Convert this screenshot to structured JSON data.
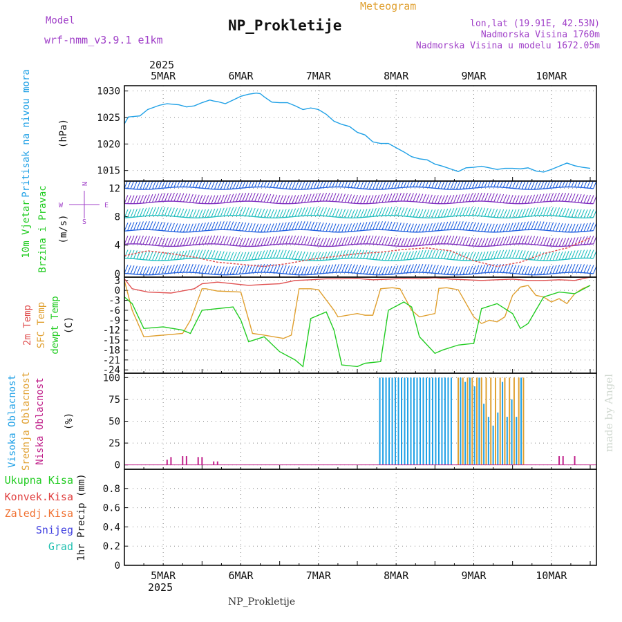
{
  "header": {
    "model_label": "Model",
    "model_name": "wrf-nmm_v3.9.1 e1km",
    "title": "NP_Prokletije",
    "meteogram_label": "Meteogram",
    "lonlat": "lon,lat (19.91E, 42.53N)",
    "elevation": "Nadmorska Visina 1760m",
    "model_elevation": "Nadmorska Visina u modelu 1672.05m",
    "footer_station": "NP_Prokletije",
    "watermark": "made by Angel"
  },
  "colors": {
    "pressure": "#1ea0e6",
    "t2m": "#e05050",
    "sfc": "#e0a030",
    "dewpt": "#22cc22",
    "high_cloud": "#1ea0e6",
    "mid_cloud": "#e0a030",
    "low_cloud": "#c0208a",
    "purple_text": "#a040c8",
    "grid": "#888888"
  },
  "chart_data": [
    {
      "id": "pressure",
      "type": "line",
      "ylabel_lines": [
        "Pritisak na nivou mora"
      ],
      "unit": "(hPa)",
      "ylim": [
        1013,
        1031
      ],
      "yticks": [
        1015,
        1020,
        1025,
        1030
      ],
      "x_days_start": 0,
      "series": [
        {
          "values_x": [
            0,
            0.05,
            0.2,
            0.3,
            0.45,
            0.55,
            0.7,
            0.8,
            0.9,
            1.0,
            1.1,
            1.15,
            1.2,
            1.3,
            1.4,
            1.5,
            1.6,
            1.7,
            1.75,
            1.8,
            1.9,
            2.0,
            2.1,
            2.2,
            2.3,
            2.4,
            2.5,
            2.6,
            2.7,
            2.8,
            2.9,
            3.0,
            3.1,
            3.2,
            3.3,
            3.4,
            3.5,
            3.6,
            3.7,
            3.8,
            3.9,
            4.0,
            4.1,
            4.2,
            4.3,
            4.4,
            4.5,
            4.6,
            4.7,
            4.8,
            4.9,
            5.0,
            5.1,
            5.2,
            5.3,
            5.4,
            5.5,
            5.6,
            5.7,
            5.8,
            5.9,
            6.0
          ],
          "values_y": [
            1023.8,
            1025.1,
            1025.3,
            1026.5,
            1027.3,
            1027.6,
            1027.4,
            1027.0,
            1027.2,
            1027.8,
            1028.3,
            1028.1,
            1028.0,
            1027.6,
            1028.3,
            1029.0,
            1029.4,
            1029.6,
            1029.5,
            1028.9,
            1027.9,
            1027.8,
            1027.8,
            1027.2,
            1026.5,
            1026.8,
            1026.5,
            1025.6,
            1024.3,
            1023.7,
            1023.3,
            1022.2,
            1021.7,
            1020.4,
            1020.1,
            1020.1,
            1019.3,
            1018.5,
            1017.6,
            1017.2,
            1017.0,
            1016.2,
            1015.8,
            1015.3,
            1014.8,
            1015.5,
            1015.6,
            1015.8,
            1015.5,
            1015.2,
            1015.4,
            1015.4,
            1015.3,
            1015.5,
            1014.9,
            1014.7,
            1015.2,
            1015.8,
            1016.4,
            1015.9,
            1015.6,
            1015.4
          ]
        }
      ]
    },
    {
      "id": "wind",
      "type": "line",
      "ylabel_lines": [
        "10m Vjetar",
        "Brzina i Pravac"
      ],
      "unit": "(m/s)",
      "ylim": [
        -0.5,
        13
      ],
      "yticks": [
        0,
        4,
        8,
        12
      ],
      "compass": [
        "N",
        "E",
        "S",
        "W"
      ],
      "series": [
        {
          "name": "",
          "level": 12,
          "color": "#2060e0"
        },
        {
          "name": "",
          "level": 10,
          "color": "#8030c0"
        },
        {
          "name": "",
          "level": 8,
          "color": "#20c0c0"
        },
        {
          "name": "",
          "level": 6,
          "color": "#2060e0"
        },
        {
          "name": "",
          "level": 4,
          "color": "#8030c0"
        },
        {
          "name": "",
          "level": 2,
          "color": "#20c0c0"
        },
        {
          "name": "",
          "level": 0,
          "color": "#2060e0"
        }
      ],
      "speed_series": {
        "color": "#e05050",
        "values_x": [
          0,
          0.3,
          0.6,
          0.9,
          1.2,
          1.5,
          1.8,
          2.1,
          2.4,
          2.7,
          3.0,
          3.3,
          3.6,
          3.9,
          4.2,
          4.5,
          4.8,
          5.1,
          5.4,
          5.7,
          6.0
        ],
        "values_y": [
          2.5,
          3.2,
          2.8,
          2.3,
          1.6,
          1.3,
          1.0,
          1.4,
          2.0,
          2.4,
          2.8,
          3.0,
          3.4,
          3.6,
          3.2,
          1.8,
          1.0,
          1.6,
          2.8,
          3.6,
          5.0
        ]
      }
    },
    {
      "id": "temp",
      "type": "line",
      "ylabel_lines": [
        "2m Temp",
        "SFC Temp",
        "dewpt Temp"
      ],
      "unit": "(C)",
      "ylim": [
        -25,
        4
      ],
      "yticks": [
        3,
        0,
        -3,
        -6,
        -9,
        -12,
        -15,
        -18,
        -21,
        -24
      ],
      "series": [
        {
          "name": "2m Temp",
          "color": "#e05050",
          "values_x": [
            0,
            0.1,
            0.3,
            0.6,
            0.9,
            1.0,
            1.2,
            1.4,
            1.6,
            1.8,
            2.0,
            2.2,
            2.4,
            2.6,
            2.8,
            3.0,
            3.2,
            3.4,
            3.6,
            3.8,
            4.0,
            4.2,
            4.4,
            4.6,
            4.8,
            5.0,
            5.2,
            5.4,
            5.6,
            5.8,
            6.0
          ],
          "values_y": [
            3.5,
            0.5,
            -0.5,
            -0.8,
            0.5,
            2.0,
            2.5,
            2.0,
            1.5,
            1.8,
            2.0,
            3.0,
            3.2,
            3.5,
            3.5,
            3.6,
            3.2,
            3.4,
            3.6,
            3.5,
            3.8,
            3.4,
            3.2,
            3.0,
            3.2,
            3.4,
            3.0,
            3.0,
            3.2,
            3.0,
            4.0
          ]
        },
        {
          "name": "SFC Temp",
          "color": "#e0a030",
          "values_x": [
            0,
            0.1,
            0.25,
            0.5,
            0.75,
            0.85,
            1.0,
            1.05,
            1.2,
            1.5,
            1.65,
            1.8,
            2.05,
            2.15,
            2.25,
            2.4,
            2.5,
            2.7,
            2.75,
            3.0,
            3.1,
            3.2,
            3.3,
            3.45,
            3.55,
            3.7,
            3.8,
            4.0,
            4.05,
            4.15,
            4.3,
            4.5,
            4.6,
            4.7,
            4.8,
            4.9,
            5.0,
            5.1,
            5.2,
            5.3,
            5.4,
            5.5,
            5.6,
            5.7,
            5.8,
            5.9,
            6.0
          ],
          "values_y": [
            3.0,
            -6.0,
            -14.0,
            -13.5,
            -13.0,
            -9.0,
            0.5,
            0.5,
            -0.2,
            -0.5,
            -13.0,
            -13.5,
            -14.5,
            -13.5,
            0.5,
            0.5,
            0.2,
            -6.0,
            -8.0,
            -7.0,
            -7.5,
            -7.5,
            0.5,
            0.8,
            0.5,
            -6.0,
            -8.0,
            -7.0,
            0.6,
            0.8,
            0.2,
            -8.0,
            -10.0,
            -9.0,
            -9.5,
            -8.0,
            -1.5,
            1.0,
            1.5,
            -1.5,
            -2.0,
            -3.5,
            -2.5,
            -4.0,
            -1.0,
            0.5,
            1.5
          ]
        },
        {
          "name": "dewpt Temp",
          "color": "#22cc22",
          "values_x": [
            0,
            0.1,
            0.25,
            0.5,
            0.75,
            0.85,
            1.0,
            1.2,
            1.4,
            1.5,
            1.6,
            1.8,
            2.0,
            2.2,
            2.3,
            2.4,
            2.6,
            2.7,
            2.8,
            3.0,
            3.1,
            3.3,
            3.4,
            3.6,
            3.7,
            3.8,
            4.0,
            4.1,
            4.3,
            4.5,
            4.6,
            4.8,
            5.0,
            5.1,
            5.2,
            5.4,
            5.6,
            5.8,
            6.0
          ],
          "values_y": [
            -2.0,
            -4.0,
            -11.5,
            -11.0,
            -12.0,
            -13.0,
            -6.0,
            -5.5,
            -5.0,
            -9.0,
            -15.5,
            -14.0,
            -18.5,
            -21.0,
            -23.0,
            -8.5,
            -6.5,
            -12.0,
            -22.5,
            -23.0,
            -22.0,
            -21.5,
            -6.0,
            -3.5,
            -5.0,
            -14.0,
            -19.0,
            -18.0,
            -16.5,
            -16.0,
            -5.5,
            -4.0,
            -7.0,
            -11.5,
            -10.0,
            -2.0,
            -0.5,
            -1.0,
            1.5
          ]
        }
      ]
    },
    {
      "id": "cloud",
      "type": "bar",
      "ylabel_lines": [
        "Visoka Oblacnost",
        "Srednja Oblacnost",
        "Niska Oblacnost"
      ],
      "unit": "(%)",
      "ylim": [
        -5,
        105
      ],
      "yticks": [
        0,
        25,
        50,
        75,
        100
      ],
      "series": [
        {
          "name": "Visoka Oblacnost",
          "color": "#1ea0e6",
          "values_x": [
            3.29,
            3.33,
            3.37,
            3.41,
            3.45,
            3.49,
            3.53,
            3.57,
            3.61,
            3.65,
            3.69,
            3.73,
            3.77,
            3.81,
            3.85,
            3.89,
            3.93,
            3.97,
            4.01,
            4.05,
            4.09,
            4.13,
            4.17,
            4.21
          ],
          "values_y": [
            100,
            100,
            100,
            100,
            100,
            100,
            100,
            100,
            100,
            100,
            100,
            100,
            100,
            100,
            100,
            100,
            100,
            100,
            100,
            100,
            100,
            100,
            100,
            100
          ]
        },
        {
          "name": "Srednja Oblacnost",
          "color": "#e0a030",
          "values_x": [
            4.3,
            4.36,
            4.42,
            4.48,
            4.54,
            4.6,
            4.66,
            4.72,
            4.78,
            4.84,
            4.9,
            4.96,
            5.02,
            5.08,
            5.14
          ],
          "values_y": [
            100,
            100,
            100,
            100,
            100,
            100,
            100,
            100,
            100,
            100,
            100,
            100,
            100,
            100,
            100
          ]
        },
        {
          "name": "Niska Oblacnost",
          "color": "#c0208a",
          "values_x": [
            0.55,
            0.6,
            0.75,
            0.8,
            0.95,
            1.0,
            1.15,
            1.2,
            5.6,
            5.65,
            5.8
          ],
          "values_y": [
            6,
            9,
            10,
            10,
            9,
            9,
            4,
            4,
            10,
            10,
            10
          ]
        }
      ],
      "extra_bars": {
        "color": "#1ea0e6",
        "values_x": [
          4.33,
          4.39,
          4.45,
          4.51,
          4.57,
          4.63,
          4.69,
          4.75,
          4.81,
          4.87,
          4.93,
          4.99,
          5.05,
          5.11
        ],
        "values_y": [
          100,
          95,
          100,
          90,
          100,
          70,
          55,
          45,
          60,
          95,
          55,
          75,
          55,
          100
        ]
      }
    },
    {
      "id": "precip",
      "type": "line",
      "ylabel_lines": [
        "1hr Precip (mm)"
      ],
      "unit": "",
      "ylim": [
        0,
        1.0
      ],
      "yticks": [
        0,
        0.2,
        0.4,
        0.6,
        0.8
      ],
      "legend": [
        {
          "label": "Ukupna Kisa",
          "color": "#22cc22"
        },
        {
          "label": "Konvek.Kisa",
          "color": "#e04040"
        },
        {
          "label": "Zaledj.Kisa",
          "color": "#f07030"
        },
        {
          "label": "Snijeg",
          "color": "#4040e0"
        },
        {
          "label": "Grad",
          "color": "#20c0b0"
        }
      ],
      "series": []
    }
  ],
  "xaxis": {
    "year": "2025",
    "day_labels": [
      "5MAR",
      "6MAR",
      "7MAR",
      "8MAR",
      "9MAR",
      "10MAR"
    ],
    "day_positions": [
      0.5,
      1.5,
      2.5,
      3.5,
      4.5,
      5.5
    ],
    "x_range": [
      0,
      6.08
    ]
  }
}
